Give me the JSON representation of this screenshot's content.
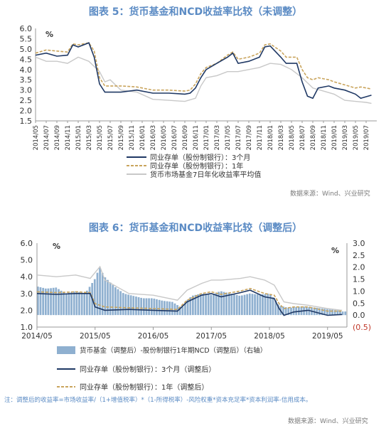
{
  "chart_data": [
    {
      "type": "line",
      "title": "图表 5：货币基金和NCD收益率比较（未调整）",
      "source": "数据来源：Wind、兴业研究",
      "ylabel": "%",
      "ylim": [
        1.5,
        6.0
      ],
      "yticks": [
        "1.5",
        "2.0",
        "2.5",
        "3.0",
        "3.5",
        "4.0",
        "4.5",
        "5.0",
        "5.5",
        "6.0"
      ],
      "xticks": [
        "2014/05",
        "2014/07",
        "2014/09",
        "2014/11",
        "2015/01",
        "2015/03",
        "2015/05",
        "2015/07",
        "2015/09",
        "2015/11",
        "2016/01",
        "2016/03",
        "2016/05",
        "2016/07",
        "2016/09",
        "2016/11",
        "2017/01",
        "2017/03",
        "2017/05",
        "2017/07",
        "2017/09",
        "2017/11",
        "2018/01",
        "2018/03",
        "2018/05",
        "2018/07",
        "2018/09",
        "2018/11",
        "2019/01",
        "2019/03",
        "2019/05",
        "2019/07"
      ],
      "legend": [
        "同业存单（股份制银行）：3个月",
        "同业存单（股份制银行）：1年",
        "货币市场基金7日年化收益率平均值"
      ],
      "series": [
        {
          "name": "同业存单（股份制银行）：3个月",
          "color": "#1f3864",
          "style": "solid",
          "points": [
            [
              "2014/05",
              4.7
            ],
            [
              "2014/07",
              4.8
            ],
            [
              "2014/09",
              4.65
            ],
            [
              "2014/11",
              4.7
            ],
            [
              "2014/12",
              5.2
            ],
            [
              "2015/01",
              5.1
            ],
            [
              "2015/03",
              5.3
            ],
            [
              "2015/04",
              4.6
            ],
            [
              "2015/05",
              3.3
            ],
            [
              "2015/06",
              2.9
            ],
            [
              "2015/09",
              2.9
            ],
            [
              "2015/12",
              3.0
            ],
            [
              "2016/03",
              2.85
            ],
            [
              "2016/06",
              2.85
            ],
            [
              "2016/09",
              2.8
            ],
            [
              "2016/10",
              2.85
            ],
            [
              "2016/11",
              3.1
            ],
            [
              "2016/12",
              3.6
            ],
            [
              "2017/01",
              4.0
            ],
            [
              "2017/03",
              4.3
            ],
            [
              "2017/05",
              4.6
            ],
            [
              "2017/06",
              4.8
            ],
            [
              "2017/07",
              4.3
            ],
            [
              "2017/09",
              4.4
            ],
            [
              "2017/11",
              4.6
            ],
            [
              "2017/12",
              5.1
            ],
            [
              "2018/01",
              5.15
            ],
            [
              "2018/03",
              4.6
            ],
            [
              "2018/04",
              4.3
            ],
            [
              "2018/06",
              4.3
            ],
            [
              "2018/07",
              3.4
            ],
            [
              "2018/08",
              2.7
            ],
            [
              "2018/09",
              2.6
            ],
            [
              "2018/10",
              3.1
            ],
            [
              "2018/12",
              3.2
            ],
            [
              "2019/01",
              3.1
            ],
            [
              "2019/03",
              3.0
            ],
            [
              "2019/05",
              2.8
            ],
            [
              "2019/06",
              2.6
            ],
            [
              "2019/08",
              2.75
            ]
          ]
        },
        {
          "name": "同业存单（股份制银行）：1年",
          "color": "#c9a45c",
          "style": "dashed",
          "points": [
            [
              "2014/05",
              4.8
            ],
            [
              "2014/07",
              4.95
            ],
            [
              "2014/09",
              4.9
            ],
            [
              "2014/11",
              4.85
            ],
            [
              "2014/12",
              5.25
            ],
            [
              "2015/01",
              5.2
            ],
            [
              "2015/03",
              5.3
            ],
            [
              "2015/04",
              4.9
            ],
            [
              "2015/05",
              3.6
            ],
            [
              "2015/06",
              3.2
            ],
            [
              "2015/09",
              3.2
            ],
            [
              "2015/12",
              3.15
            ],
            [
              "2016/03",
              3.0
            ],
            [
              "2016/06",
              3.0
            ],
            [
              "2016/09",
              2.95
            ],
            [
              "2016/10",
              3.0
            ],
            [
              "2016/11",
              3.3
            ],
            [
              "2016/12",
              3.8
            ],
            [
              "2017/01",
              4.1
            ],
            [
              "2017/03",
              4.3
            ],
            [
              "2017/05",
              4.7
            ],
            [
              "2017/06",
              4.85
            ],
            [
              "2017/07",
              4.5
            ],
            [
              "2017/09",
              4.6
            ],
            [
              "2017/11",
              4.8
            ],
            [
              "2017/12",
              5.2
            ],
            [
              "2018/01",
              5.25
            ],
            [
              "2018/03",
              4.9
            ],
            [
              "2018/04",
              4.6
            ],
            [
              "2018/06",
              4.6
            ],
            [
              "2018/07",
              4.0
            ],
            [
              "2018/08",
              3.6
            ],
            [
              "2018/09",
              3.5
            ],
            [
              "2018/10",
              3.6
            ],
            [
              "2018/12",
              3.5
            ],
            [
              "2019/01",
              3.4
            ],
            [
              "2019/03",
              3.25
            ],
            [
              "2019/05",
              3.1
            ],
            [
              "2019/06",
              3.15
            ],
            [
              "2019/08",
              3.05
            ]
          ]
        },
        {
          "name": "货币市场基金7日年化收益率平均值",
          "color": "#c8c8c8",
          "style": "solid",
          "points": [
            [
              "2014/05",
              4.6
            ],
            [
              "2014/07",
              4.4
            ],
            [
              "2014/09",
              4.4
            ],
            [
              "2014/11",
              4.3
            ],
            [
              "2015/01",
              4.6
            ],
            [
              "2015/03",
              4.4
            ],
            [
              "2015/05",
              3.9
            ],
            [
              "2015/06",
              3.4
            ],
            [
              "2015/07",
              3.5
            ],
            [
              "2015/09",
              3.0
            ],
            [
              "2015/12",
              2.9
            ],
            [
              "2016/03",
              2.55
            ],
            [
              "2016/06",
              2.5
            ],
            [
              "2016/09",
              2.45
            ],
            [
              "2016/11",
              2.6
            ],
            [
              "2016/12",
              3.2
            ],
            [
              "2017/01",
              3.6
            ],
            [
              "2017/03",
              3.7
            ],
            [
              "2017/05",
              3.9
            ],
            [
              "2017/07",
              3.9
            ],
            [
              "2017/09",
              4.0
            ],
            [
              "2017/11",
              4.1
            ],
            [
              "2018/01",
              4.3
            ],
            [
              "2018/03",
              4.25
            ],
            [
              "2018/05",
              4.0
            ],
            [
              "2018/07",
              3.6
            ],
            [
              "2018/09",
              3.1
            ],
            [
              "2018/11",
              2.95
            ],
            [
              "2019/01",
              2.8
            ],
            [
              "2019/03",
              2.5
            ],
            [
              "2019/05",
              2.45
            ],
            [
              "2019/07",
              2.4
            ],
            [
              "2019/08",
              2.35
            ]
          ]
        }
      ]
    },
    {
      "type": "line",
      "title": "图表 6：货币基金和NCD收益率比较（调整后）",
      "source": "数据来源：Wind、兴业研究",
      "ylabel": "%",
      "ylabel_right": "%",
      "ylim": [
        1.0,
        6.0
      ],
      "ylim_right": [
        -0.5,
        3.0
      ],
      "yticks": [
        "1.0",
        "2.0",
        "3.0",
        "4.0",
        "5.0",
        "6.0"
      ],
      "yticks_right": [
        "(0.5)",
        "0.0",
        "0.5",
        "1.0",
        "1.5",
        "2.0",
        "2.5",
        "3.0"
      ],
      "xticks": [
        "2014/05",
        "2015/05",
        "2016/05",
        "2017/05",
        "2018/05",
        "2019/05"
      ],
      "legend": [
        "货币基金（调整后）-股份制银行1年期NCD（调整后）（右轴）",
        "同业存单（股份制银行）：3个月（调整后）",
        "同业存单（股份制银行）：1年（调整后）"
      ],
      "bars": {
        "name": "货币基金（调整后）-股份制银行1年期NCD（调整后）（右轴）",
        "color": "#8fb0d0",
        "points": [
          [
            "2014/05",
            1.2
          ],
          [
            "2014/07",
            1.1
          ],
          [
            "2014/09",
            1.15
          ],
          [
            "2014/11",
            0.9
          ],
          [
            "2015/01",
            1.0
          ],
          [
            "2015/03",
            0.9
          ],
          [
            "2015/05",
            1.5
          ],
          [
            "2015/06",
            2.0
          ],
          [
            "2015/07",
            1.6
          ],
          [
            "2015/09",
            1.2
          ],
          [
            "2015/11",
            0.9
          ],
          [
            "2016/01",
            0.8
          ],
          [
            "2016/03",
            0.7
          ],
          [
            "2016/05",
            0.7
          ],
          [
            "2016/07",
            0.6
          ],
          [
            "2016/09",
            0.55
          ],
          [
            "2016/11",
            0.3
          ],
          [
            "2016/12",
            0.6
          ],
          [
            "2017/01",
            0.8
          ],
          [
            "2017/03",
            0.9
          ],
          [
            "2017/05",
            0.85
          ],
          [
            "2017/07",
            1.0
          ],
          [
            "2017/09",
            0.9
          ],
          [
            "2017/11",
            0.8
          ],
          [
            "2018/01",
            0.9
          ],
          [
            "2018/03",
            0.85
          ],
          [
            "2018/05",
            0.9
          ],
          [
            "2018/06",
            0.7
          ],
          [
            "2018/07",
            0.4
          ],
          [
            "2018/09",
            0.3
          ],
          [
            "2018/11",
            0.35
          ],
          [
            "2019/01",
            0.35
          ],
          [
            "2019/03",
            0.3
          ],
          [
            "2019/05",
            0.25
          ],
          [
            "2019/07",
            0.2
          ],
          [
            "2019/08",
            0.15
          ]
        ]
      },
      "series": [
        {
          "name": "同业存单（股份制银行）：3个月（调整后）",
          "color": "#1f3864",
          "style": "solid",
          "points": [
            [
              "2014/05",
              3.0
            ],
            [
              "2014/09",
              2.95
            ],
            [
              "2015/01",
              3.0
            ],
            [
              "2015/04",
              3.0
            ],
            [
              "2015/05",
              2.2
            ],
            [
              "2015/07",
              2.0
            ],
            [
              "2015/12",
              2.05
            ],
            [
              "2016/05",
              2.0
            ],
            [
              "2016/10",
              1.95
            ],
            [
              "2016/12",
              2.5
            ],
            [
              "2017/03",
              2.9
            ],
            [
              "2017/05",
              3.0
            ],
            [
              "2017/07",
              2.8
            ],
            [
              "2017/11",
              3.05
            ],
            [
              "2018/01",
              3.2
            ],
            [
              "2018/04",
              2.8
            ],
            [
              "2018/06",
              2.7
            ],
            [
              "2018/07",
              2.1
            ],
            [
              "2018/08",
              1.7
            ],
            [
              "2018/10",
              1.9
            ],
            [
              "2019/01",
              2.0
            ],
            [
              "2019/05",
              1.7
            ],
            [
              "2019/08",
              1.75
            ]
          ]
        },
        {
          "name": "同业存单（股份制银行）：1年（调整后）",
          "color": "#c9a45c",
          "style": "dashed",
          "points": [
            [
              "2014/05",
              3.1
            ],
            [
              "2014/09",
              3.05
            ],
            [
              "2015/01",
              3.1
            ],
            [
              "2015/04",
              3.05
            ],
            [
              "2015/05",
              2.4
            ],
            [
              "2015/07",
              2.2
            ],
            [
              "2015/12",
              2.15
            ],
            [
              "2016/05",
              2.1
            ],
            [
              "2016/10",
              2.05
            ],
            [
              "2016/12",
              2.6
            ],
            [
              "2017/03",
              3.0
            ],
            [
              "2017/05",
              3.1
            ],
            [
              "2017/07",
              2.95
            ],
            [
              "2017/11",
              3.15
            ],
            [
              "2018/01",
              3.3
            ],
            [
              "2018/04",
              3.0
            ],
            [
              "2018/06",
              2.9
            ],
            [
              "2018/07",
              2.4
            ],
            [
              "2018/08",
              2.1
            ],
            [
              "2018/10",
              2.2
            ],
            [
              "2019/01",
              2.2
            ],
            [
              "2019/05",
              1.95
            ],
            [
              "2019/08",
              1.95
            ]
          ]
        }
      ],
      "extra_line": {
        "name": "货币基金（调整后）",
        "color": "#c8c8c8",
        "points": [
          [
            "2014/05",
            4.1
          ],
          [
            "2014/09",
            4.0
          ],
          [
            "2015/01",
            4.1
          ],
          [
            "2015/04",
            3.9
          ],
          [
            "2015/06",
            4.6
          ],
          [
            "2015/07",
            3.8
          ],
          [
            "2015/12",
            3.0
          ],
          [
            "2016/05",
            2.9
          ],
          [
            "2016/10",
            2.6
          ],
          [
            "2016/12",
            3.2
          ],
          [
            "2017/03",
            3.6
          ],
          [
            "2017/05",
            3.8
          ],
          [
            "2017/07",
            3.8
          ],
          [
            "2017/11",
            3.9
          ],
          [
            "2018/01",
            4.0
          ],
          [
            "2018/04",
            3.8
          ],
          [
            "2018/06",
            3.5
          ],
          [
            "2018/07",
            3.0
          ],
          [
            "2018/08",
            2.5
          ],
          [
            "2018/10",
            2.4
          ],
          [
            "2019/01",
            2.3
          ],
          [
            "2019/05",
            2.1
          ],
          [
            "2019/08",
            2.0
          ]
        ]
      }
    }
  ],
  "footnote": "注：调整后的收益率=市场收益率/（1+增值税率）*（1-所得税率）-风险权重*资本充足率*资本利润率-信用成本。",
  "watermark": "兴业研究"
}
